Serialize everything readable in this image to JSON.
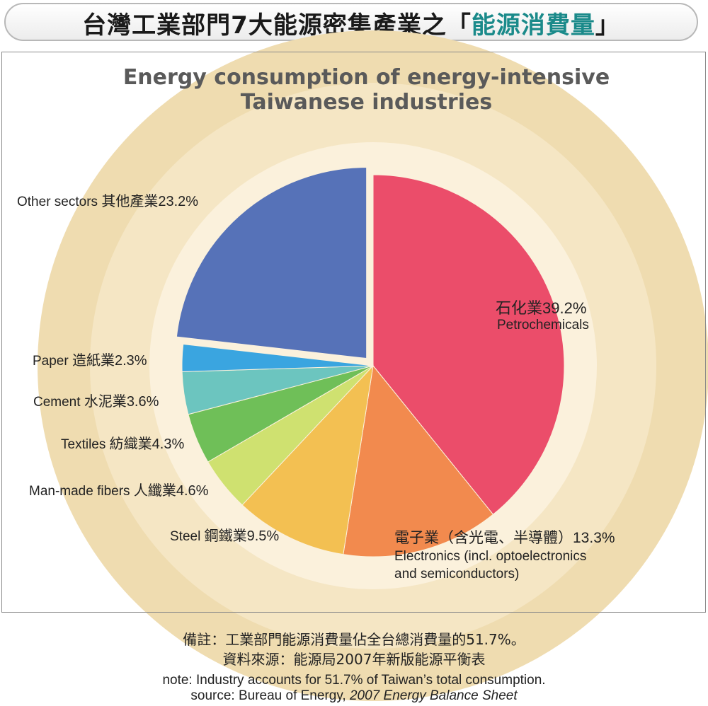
{
  "banner": {
    "prefix": "台灣工業部門7大能源密集產業之「",
    "highlight": "能源消費量",
    "suffix": "」",
    "highlight_color": "#1a8a8a"
  },
  "chart_data": {
    "type": "pie",
    "title_line1": "Energy consumption of energy-intensive",
    "title_line2": "Taiwanese industries",
    "unit": "%",
    "slices": [
      {
        "cn": "石化業",
        "en": "Petrochemicals",
        "value": 39.2,
        "color": "#eb4d6a"
      },
      {
        "cn": "電子業（含光電、半導體）",
        "en": "Electronics (incl. optoelectronics",
        "en2": "and semiconductors)",
        "value": 13.3,
        "color": "#f28a4e"
      },
      {
        "cn": "鋼鐵業",
        "en": "Steel",
        "value": 9.5,
        "color": "#f3c052"
      },
      {
        "cn": "人纖業",
        "en": "Man-made fibers",
        "value": 4.6,
        "color": "#cfe170"
      },
      {
        "cn": "紡織業",
        "en": "Textiles",
        "value": 4.3,
        "color": "#6fbf58"
      },
      {
        "cn": "水泥業",
        "en": "Cement",
        "value": 3.6,
        "color": "#6cc5bf"
      },
      {
        "cn": "造紙業",
        "en": "Paper",
        "value": 2.3,
        "color": "#3aa5e0"
      },
      {
        "cn": "其他產業",
        "en": "Other sectors",
        "value": 23.2,
        "color": "#5672b8",
        "exploded": true
      }
    ],
    "background_rings": [
      "#efdcb0",
      "#f5e6c4",
      "#fbf1dc"
    ]
  },
  "footer": {
    "cn_note": "備註：工業部門能源消費量佔全台總消費量的51.7%。",
    "cn_source": "資料來源：能源局2007年新版能源平衡表",
    "en_note": "note: Industry accounts for 51.7% of Taiwan’s total consumption.",
    "en_source_prefix": "source: Bureau of Energy, ",
    "en_source_italic": "2007 Energy Balance Sheet"
  }
}
